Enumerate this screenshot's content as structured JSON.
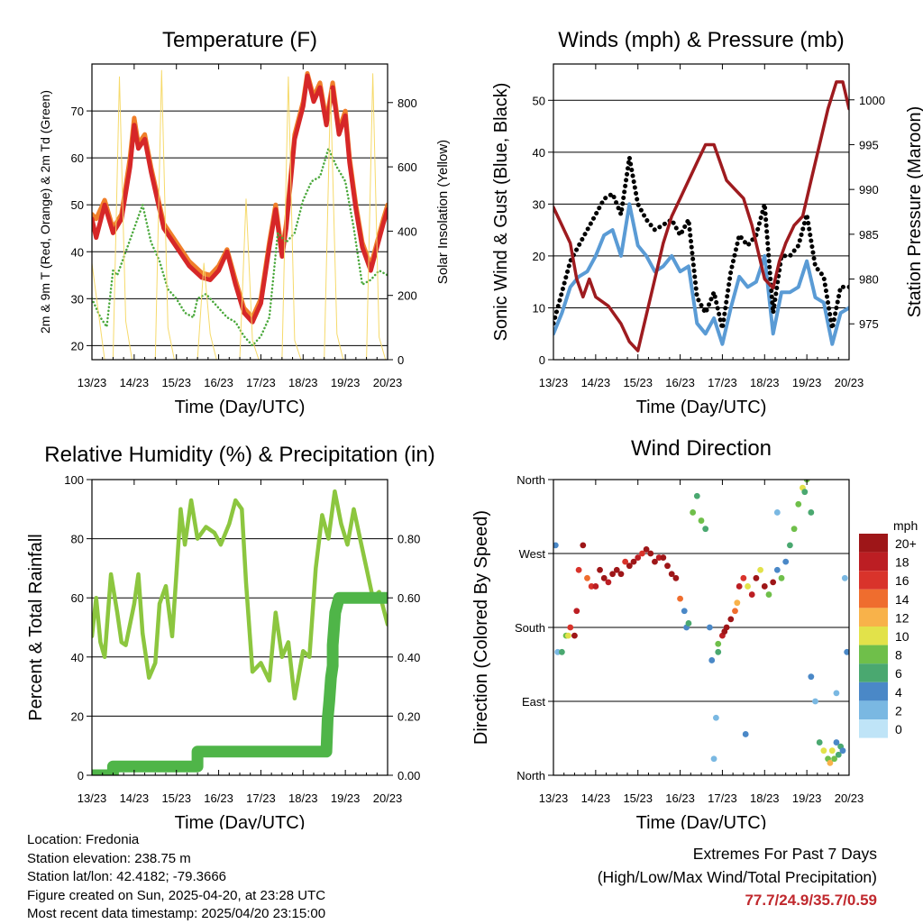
{
  "chart_data": [
    {
      "id": "temperature",
      "type": "line",
      "title": "Temperature (F)",
      "xlabel": "Time (Day/UTC)",
      "ylabel": "2m & 9m T (Red, Orange) & 2m Td (Green)",
      "ylabel_right": "Solar Insolation (Yellow)",
      "x_ticks": [
        "13/23",
        "14/23",
        "15/23",
        "16/23",
        "17/23",
        "18/23",
        "19/23",
        "20/23"
      ],
      "xlim": [
        0,
        7
      ],
      "ylim": [
        17,
        80
      ],
      "y_ticks": [
        20,
        30,
        40,
        50,
        60,
        70
      ],
      "ylim_right": [
        0,
        920
      ],
      "y_ticks_right": [
        0,
        200,
        400,
        600,
        800
      ],
      "series": [
        {
          "name": "9m T",
          "color": "#f07f2a",
          "width": 5,
          "x": [
            0,
            0.1,
            0.3,
            0.5,
            0.7,
            0.9,
            1.0,
            1.1,
            1.25,
            1.4,
            1.7,
            2.0,
            2.3,
            2.6,
            2.8,
            3.0,
            3.2,
            3.4,
            3.6,
            3.8,
            4.0,
            4.2,
            4.35,
            4.5,
            4.6,
            4.8,
            5.0,
            5.1,
            5.25,
            5.4,
            5.55,
            5.7,
            5.85,
            6.0,
            6.1,
            6.25,
            6.4,
            6.6,
            6.75,
            6.9,
            7.0
          ],
          "values": [
            48,
            47,
            51,
            45,
            48,
            60,
            68.5,
            63,
            65,
            58,
            46,
            42,
            38,
            35.5,
            35,
            37,
            40.5,
            34,
            28,
            26,
            30,
            42,
            50,
            40,
            46,
            65,
            72,
            78,
            73,
            76,
            68,
            76,
            66,
            70,
            60,
            50,
            42,
            37,
            42,
            47,
            50
          ]
        },
        {
          "name": "2m T",
          "color": "#d62728",
          "width": 5,
          "x": [
            0,
            0.1,
            0.3,
            0.5,
            0.7,
            0.9,
            1.0,
            1.1,
            1.25,
            1.4,
            1.7,
            2.0,
            2.3,
            2.6,
            2.8,
            3.0,
            3.2,
            3.4,
            3.6,
            3.8,
            4.0,
            4.2,
            4.35,
            4.5,
            4.6,
            4.8,
            5.0,
            5.1,
            5.25,
            5.4,
            5.55,
            5.7,
            5.85,
            6.0,
            6.1,
            6.25,
            6.4,
            6.6,
            6.75,
            6.9,
            7.0
          ],
          "values": [
            47,
            43,
            50,
            44,
            47,
            58,
            67,
            62,
            64,
            57,
            45,
            41,
            37,
            34.5,
            34,
            36,
            40,
            33,
            27,
            25,
            29,
            41,
            49,
            39,
            45,
            64,
            71,
            77.5,
            72,
            75,
            67,
            75,
            65,
            69,
            59,
            49,
            41,
            36,
            41,
            46,
            49
          ]
        },
        {
          "name": "2m Td",
          "color": "#4aa83b",
          "width": 2.5,
          "dotted": true,
          "x": [
            0,
            0.1,
            0.2,
            0.35,
            0.5,
            0.6,
            0.8,
            1.0,
            1.2,
            1.4,
            1.6,
            1.8,
            2.0,
            2.2,
            2.4,
            2.5,
            2.7,
            3.0,
            3.2,
            3.4,
            3.6,
            3.8,
            4.0,
            4.2,
            4.4,
            4.6,
            4.8,
            5.0,
            5.2,
            5.4,
            5.6,
            5.8,
            6.0,
            6.2,
            6.4,
            6.6,
            6.8,
            7.0
          ],
          "values": [
            30,
            28,
            26,
            24,
            36,
            35,
            40,
            45,
            50,
            42,
            38,
            32,
            30,
            27,
            26,
            30,
            31,
            28,
            26,
            25,
            22,
            20,
            22,
            26,
            44,
            42,
            44,
            51,
            55,
            56,
            62,
            58,
            55,
            45,
            33,
            34,
            36,
            35
          ]
        },
        {
          "name": "Solar Insolation",
          "color": "#f6da6b",
          "width": 1,
          "x": [
            0,
            0.3,
            0.5,
            0.65,
            0.8,
            0.95,
            1.3,
            1.5,
            1.65,
            1.8,
            1.95,
            2.3,
            2.5,
            2.65,
            2.8,
            2.95,
            3.3,
            3.5,
            3.65,
            3.8,
            3.95,
            4.3,
            4.5,
            4.65,
            4.8,
            4.95,
            5.3,
            5.5,
            5.65,
            5.8,
            5.95,
            6.3,
            6.5,
            6.65,
            6.8,
            6.95
          ],
          "values": [
            300,
            0,
            0,
            880,
            120,
            0,
            0,
            0,
            900,
            100,
            0,
            0,
            0,
            300,
            80,
            0,
            0,
            0,
            500,
            60,
            0,
            0,
            0,
            880,
            60,
            0,
            0,
            0,
            840,
            80,
            0,
            0,
            0,
            890,
            70,
            0
          ]
        }
      ]
    },
    {
      "id": "winds",
      "type": "line",
      "title": "Winds (mph) & Pressure (mb)",
      "xlabel": "Time (Day/UTC)",
      "ylabel": "Sonic Wind & Gust (Blue, Black)",
      "ylabel_right": "Station Pressure (Maroon)",
      "x_ticks": [
        "13/23",
        "14/23",
        "15/23",
        "16/23",
        "17/23",
        "18/23",
        "19/23",
        "20/23"
      ],
      "xlim": [
        0,
        7
      ],
      "ylim": [
        0,
        57
      ],
      "y_ticks": [
        0,
        10,
        20,
        30,
        40,
        50
      ],
      "ylim_right": [
        971,
        1004
      ],
      "y_ticks_right": [
        975,
        980,
        985,
        990,
        995,
        1000
      ],
      "series": [
        {
          "name": "Sonic Wind",
          "color": "#5a9bd5",
          "width": 4,
          "x": [
            0,
            0.2,
            0.4,
            0.6,
            0.8,
            1.0,
            1.2,
            1.4,
            1.6,
            1.8,
            2.0,
            2.2,
            2.4,
            2.6,
            2.8,
            3.0,
            3.2,
            3.4,
            3.6,
            3.8,
            4.0,
            4.2,
            4.4,
            4.6,
            4.8,
            5.0,
            5.2,
            5.4,
            5.6,
            5.8,
            6.0,
            6.2,
            6.4,
            6.6,
            6.8,
            7.0
          ],
          "values": [
            5,
            9,
            14,
            16,
            17,
            20,
            24,
            25,
            20,
            30,
            22,
            20,
            17,
            18,
            20,
            17,
            18,
            7,
            5,
            8,
            3,
            10,
            16,
            14,
            15,
            20,
            5,
            13,
            13,
            14,
            19,
            12,
            11,
            3,
            9,
            10
          ]
        },
        {
          "name": "Gust",
          "color": "#000000",
          "dotted": true,
          "width": 5,
          "x": [
            0,
            0.2,
            0.4,
            0.6,
            0.8,
            1.0,
            1.2,
            1.4,
            1.6,
            1.8,
            2.0,
            2.2,
            2.4,
            2.6,
            2.8,
            3.0,
            3.2,
            3.4,
            3.6,
            3.8,
            4.0,
            4.2,
            4.4,
            4.6,
            4.8,
            5.0,
            5.2,
            5.4,
            5.6,
            5.8,
            6.0,
            6.2,
            6.4,
            6.6,
            6.8,
            7.0
          ],
          "values": [
            7,
            13,
            19,
            22,
            25,
            28,
            31,
            32,
            28,
            39,
            30,
            27,
            25,
            26,
            27,
            24,
            27,
            12,
            9,
            13,
            6,
            17,
            24,
            22,
            24,
            30,
            9,
            20,
            20,
            22,
            28,
            18,
            16,
            6,
            14,
            14
          ]
        },
        {
          "name": "Station Pressure",
          "color": "#9e1b1f",
          "width": 3.5,
          "right_axis": true,
          "x": [
            0,
            0.2,
            0.4,
            0.55,
            0.7,
            0.85,
            1.0,
            1.3,
            1.6,
            1.8,
            2.0,
            2.2,
            2.4,
            2.6,
            2.8,
            3.0,
            3.2,
            3.4,
            3.6,
            3.8,
            3.95,
            4.1,
            4.3,
            4.5,
            4.7,
            4.9,
            5.0,
            5.2,
            5.35,
            5.5,
            5.7,
            5.9,
            6.1,
            6.3,
            6.5,
            6.7,
            6.85,
            7.0
          ],
          "values": [
            988,
            986,
            984,
            980,
            978,
            980,
            978,
            977,
            975,
            973,
            972,
            976,
            980,
            984,
            987,
            989,
            991,
            993,
            995,
            995,
            993,
            991,
            990,
            989,
            986,
            982,
            980,
            979,
            982,
            984,
            986,
            987,
            991,
            995,
            999,
            1002,
            1002,
            999
          ]
        }
      ]
    },
    {
      "id": "humidity",
      "type": "line",
      "title": "Relative Humidity (%) & Precipitation (in)",
      "xlabel": "Time (Day/UTC)",
      "ylabel": "Percent & Total Rainfall",
      "x_ticks": [
        "13/23",
        "14/23",
        "15/23",
        "16/23",
        "17/23",
        "18/23",
        "19/23",
        "20/23"
      ],
      "xlim": [
        0,
        7
      ],
      "ylim": [
        0,
        100
      ],
      "y_ticks": [
        0,
        20,
        40,
        60,
        80,
        100
      ],
      "ylim_right": [
        0,
        1.0
      ],
      "y_ticks_right": [
        "0.00",
        "0.20",
        "0.40",
        "0.60",
        "0.80"
      ],
      "series": [
        {
          "name": "Relative Humidity",
          "color": "#8cc63f",
          "width": 4.5,
          "x": [
            0,
            0.1,
            0.2,
            0.3,
            0.45,
            0.6,
            0.7,
            0.8,
            1.0,
            1.1,
            1.2,
            1.35,
            1.5,
            1.6,
            1.75,
            1.9,
            2.0,
            2.1,
            2.2,
            2.35,
            2.5,
            2.7,
            2.9,
            3.05,
            3.25,
            3.4,
            3.55,
            3.65,
            3.8,
            4.0,
            4.2,
            4.35,
            4.5,
            4.65,
            4.8,
            5.0,
            5.15,
            5.3,
            5.45,
            5.6,
            5.75,
            5.9,
            6.05,
            6.2,
            6.35,
            6.5,
            6.65,
            6.8,
            7.0
          ],
          "values": [
            47,
            60,
            45,
            40,
            68,
            55,
            45,
            44,
            58,
            68,
            48,
            33,
            38,
            58,
            64,
            47,
            68,
            90,
            78,
            93,
            80,
            84,
            82,
            78,
            85,
            93,
            90,
            65,
            35,
            38,
            32,
            55,
            40,
            45,
            26,
            42,
            40,
            70,
            88,
            80,
            96,
            85,
            78,
            90,
            80,
            70,
            60,
            62,
            51
          ]
        },
        {
          "name": "Total Rainfall",
          "color": "#4fb548",
          "width": 13,
          "right_axis": true,
          "x": [
            0,
            0.5,
            0.5,
            2.5,
            2.5,
            5.55,
            5.58,
            5.62,
            5.66,
            5.7,
            5.7,
            5.76,
            5.85,
            7.0
          ],
          "values": [
            0.0,
            0.0,
            0.03,
            0.03,
            0.08,
            0.08,
            0.19,
            0.25,
            0.33,
            0.37,
            0.44,
            0.55,
            0.6,
            0.6
          ]
        }
      ]
    },
    {
      "id": "direction",
      "type": "scatter",
      "title": "Wind Direction",
      "xlabel": "Time (Day/UTC)",
      "ylabel": "Direction (Colored By Speed)",
      "x_ticks": [
        "13/23",
        "14/23",
        "15/23",
        "16/23",
        "17/23",
        "18/23",
        "19/23",
        "20/23"
      ],
      "xlim": [
        0,
        7
      ],
      "ylim": [
        0,
        360
      ],
      "y_tick_values": [
        0,
        90,
        180,
        270,
        360
      ],
      "y_ticks": [
        "North",
        "East",
        "South",
        "West",
        "North"
      ],
      "colorbar_title": "mph",
      "colorbar_labels": [
        "0",
        "2",
        "4",
        "6",
        "8",
        "10",
        "12",
        "14",
        "16",
        "18",
        "20+"
      ],
      "colorbar_colors": [
        "#bfe4f7",
        "#7ab8e2",
        "#4a88c7",
        "#4aa870",
        "#6fbf4a",
        "#e2e24a",
        "#f8b24a",
        "#ef6d2e",
        "#d9332b",
        "#bc1e23",
        "#9e1618"
      ],
      "x": [
        0.05,
        0.1,
        0.2,
        0.3,
        0.35,
        0.4,
        0.5,
        0.55,
        0.6,
        0.7,
        0.8,
        0.9,
        1.0,
        1.1,
        1.2,
        1.3,
        1.4,
        1.5,
        1.6,
        1.7,
        1.8,
        1.9,
        2.0,
        2.1,
        2.2,
        2.3,
        2.4,
        2.5,
        2.6,
        2.7,
        2.8,
        2.9,
        3.0,
        3.1,
        3.15,
        3.2,
        3.3,
        3.4,
        3.5,
        3.6,
        3.7,
        3.75,
        3.8,
        3.85,
        3.9,
        4.0,
        4.05,
        4.1,
        4.2,
        4.3,
        4.35,
        4.4,
        4.5,
        4.6,
        4.7,
        4.8,
        4.9,
        5.0,
        5.1,
        5.2,
        5.3,
        5.4,
        5.5,
        5.6,
        5.7,
        5.8,
        5.9,
        6.0,
        6.1,
        6.2,
        6.3,
        6.4,
        6.5,
        6.55,
        6.6,
        6.65,
        6.7,
        6.75,
        6.8,
        6.85,
        6.9,
        6.95,
        6.1,
        5.95,
        6.7,
        4.55,
        5.3,
        3.9
      ],
      "y": [
        280,
        150,
        150,
        170,
        170,
        180,
        170,
        200,
        250,
        280,
        240,
        230,
        230,
        250,
        240,
        235,
        245,
        250,
        245,
        260,
        255,
        260,
        265,
        270,
        275,
        270,
        260,
        265,
        265,
        255,
        245,
        240,
        215,
        200,
        180,
        185,
        320,
        340,
        310,
        300,
        180,
        140,
        20,
        70,
        160,
        170,
        175,
        180,
        190,
        200,
        210,
        230,
        240,
        230,
        220,
        240,
        250,
        230,
        220,
        235,
        250,
        240,
        260,
        280,
        300,
        330,
        350,
        360,
        120,
        90,
        40,
        30,
        20,
        15,
        30,
        20,
        40,
        25,
        35,
        30,
        240,
        150,
        320,
        345,
        100,
        50,
        320,
        150
      ],
      "speeds": [
        4,
        2,
        6,
        8,
        10,
        16,
        20,
        18,
        16,
        20,
        14,
        16,
        18,
        20,
        20,
        18,
        20,
        20,
        20,
        16,
        20,
        20,
        18,
        16,
        20,
        20,
        20,
        18,
        20,
        20,
        20,
        20,
        14,
        4,
        4,
        6,
        8,
        6,
        8,
        6,
        4,
        4,
        2,
        2,
        8,
        18,
        20,
        20,
        20,
        14,
        12,
        18,
        16,
        10,
        18,
        20,
        10,
        20,
        8,
        20,
        4,
        8,
        4,
        6,
        8,
        8,
        10,
        8,
        4,
        2,
        6,
        10,
        8,
        12,
        10,
        8,
        4,
        6,
        6,
        4,
        2,
        4,
        6,
        6,
        2,
        4,
        2,
        6
      ]
    }
  ],
  "info": {
    "location": "Location: Fredonia",
    "elevation": "Station elevation: 238.75 m",
    "latlon": "Station lat/lon: 42.4182; -79.3666",
    "created": "Figure created on Sun, 2025-04-20, at 23:28 UTC",
    "recent": "Most recent data timestamp: 2025/04/20 23:15:00"
  },
  "extremes": {
    "title": "Extremes For Past 7 Days",
    "subtitle": "(High/Low/Max Wind/Total Precipitation)",
    "values": "77.7/24.9/35.7/0.59"
  }
}
